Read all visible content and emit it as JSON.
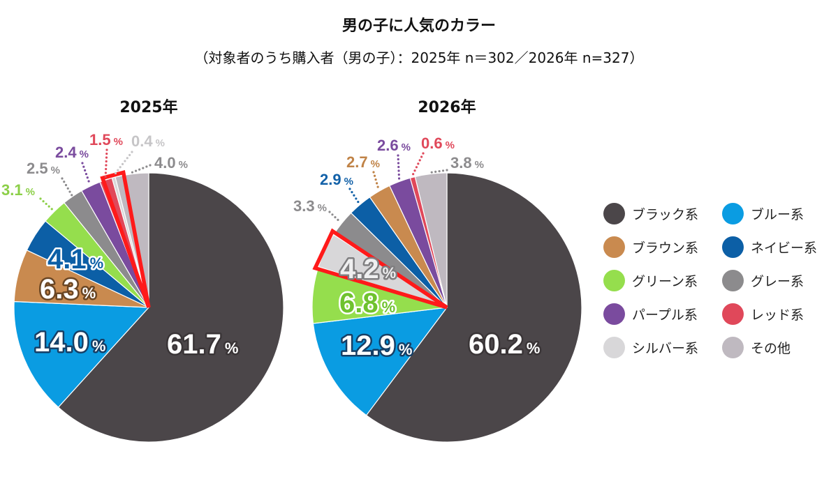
{
  "title": "男の子に人気のカラー",
  "subtitle": "（対象者のうち購入者（男の子）：2025年 n＝302／2026年 n=327）",
  "chart_data": {
    "type": "pie",
    "categories": [
      "ブラック系",
      "ブルー系",
      "ブラウン系",
      "ネイビー系",
      "グリーン系",
      "グレー系",
      "パープル系",
      "レッド系",
      "シルバー系",
      "その他"
    ],
    "colors": [
      "#4b4649",
      "#0a9ce2",
      "#c98a4f",
      "#0c5fa6",
      "#95de4d",
      "#8c8b8d",
      "#7a4b9e",
      "#e0485a",
      "#d8d7d9",
      "#bfb9c0"
    ],
    "label_colors": [
      "#4b4649",
      "#0a9ce2",
      "#c08347",
      "#1261a8",
      "#8ccf48",
      "#8c8b8d",
      "#7a4b9e",
      "#e0485a",
      "#c6c5c7",
      "#8c8b8d"
    ],
    "unit": "%",
    "series": [
      {
        "name": "2025年",
        "values": [
          61.7,
          14.0,
          6.3,
          4.1,
          3.1,
          2.5,
          2.4,
          1.5,
          0.4,
          4.0
        ]
      },
      {
        "name": "2026年",
        "values": [
          60.2,
          12.9,
          2.7,
          2.9,
          6.8,
          3.3,
          2.6,
          0.6,
          4.2,
          3.8
        ]
      }
    ],
    "highlight": {
      "category_index": 8,
      "color": "#ff1a1a"
    },
    "legend": "right"
  }
}
